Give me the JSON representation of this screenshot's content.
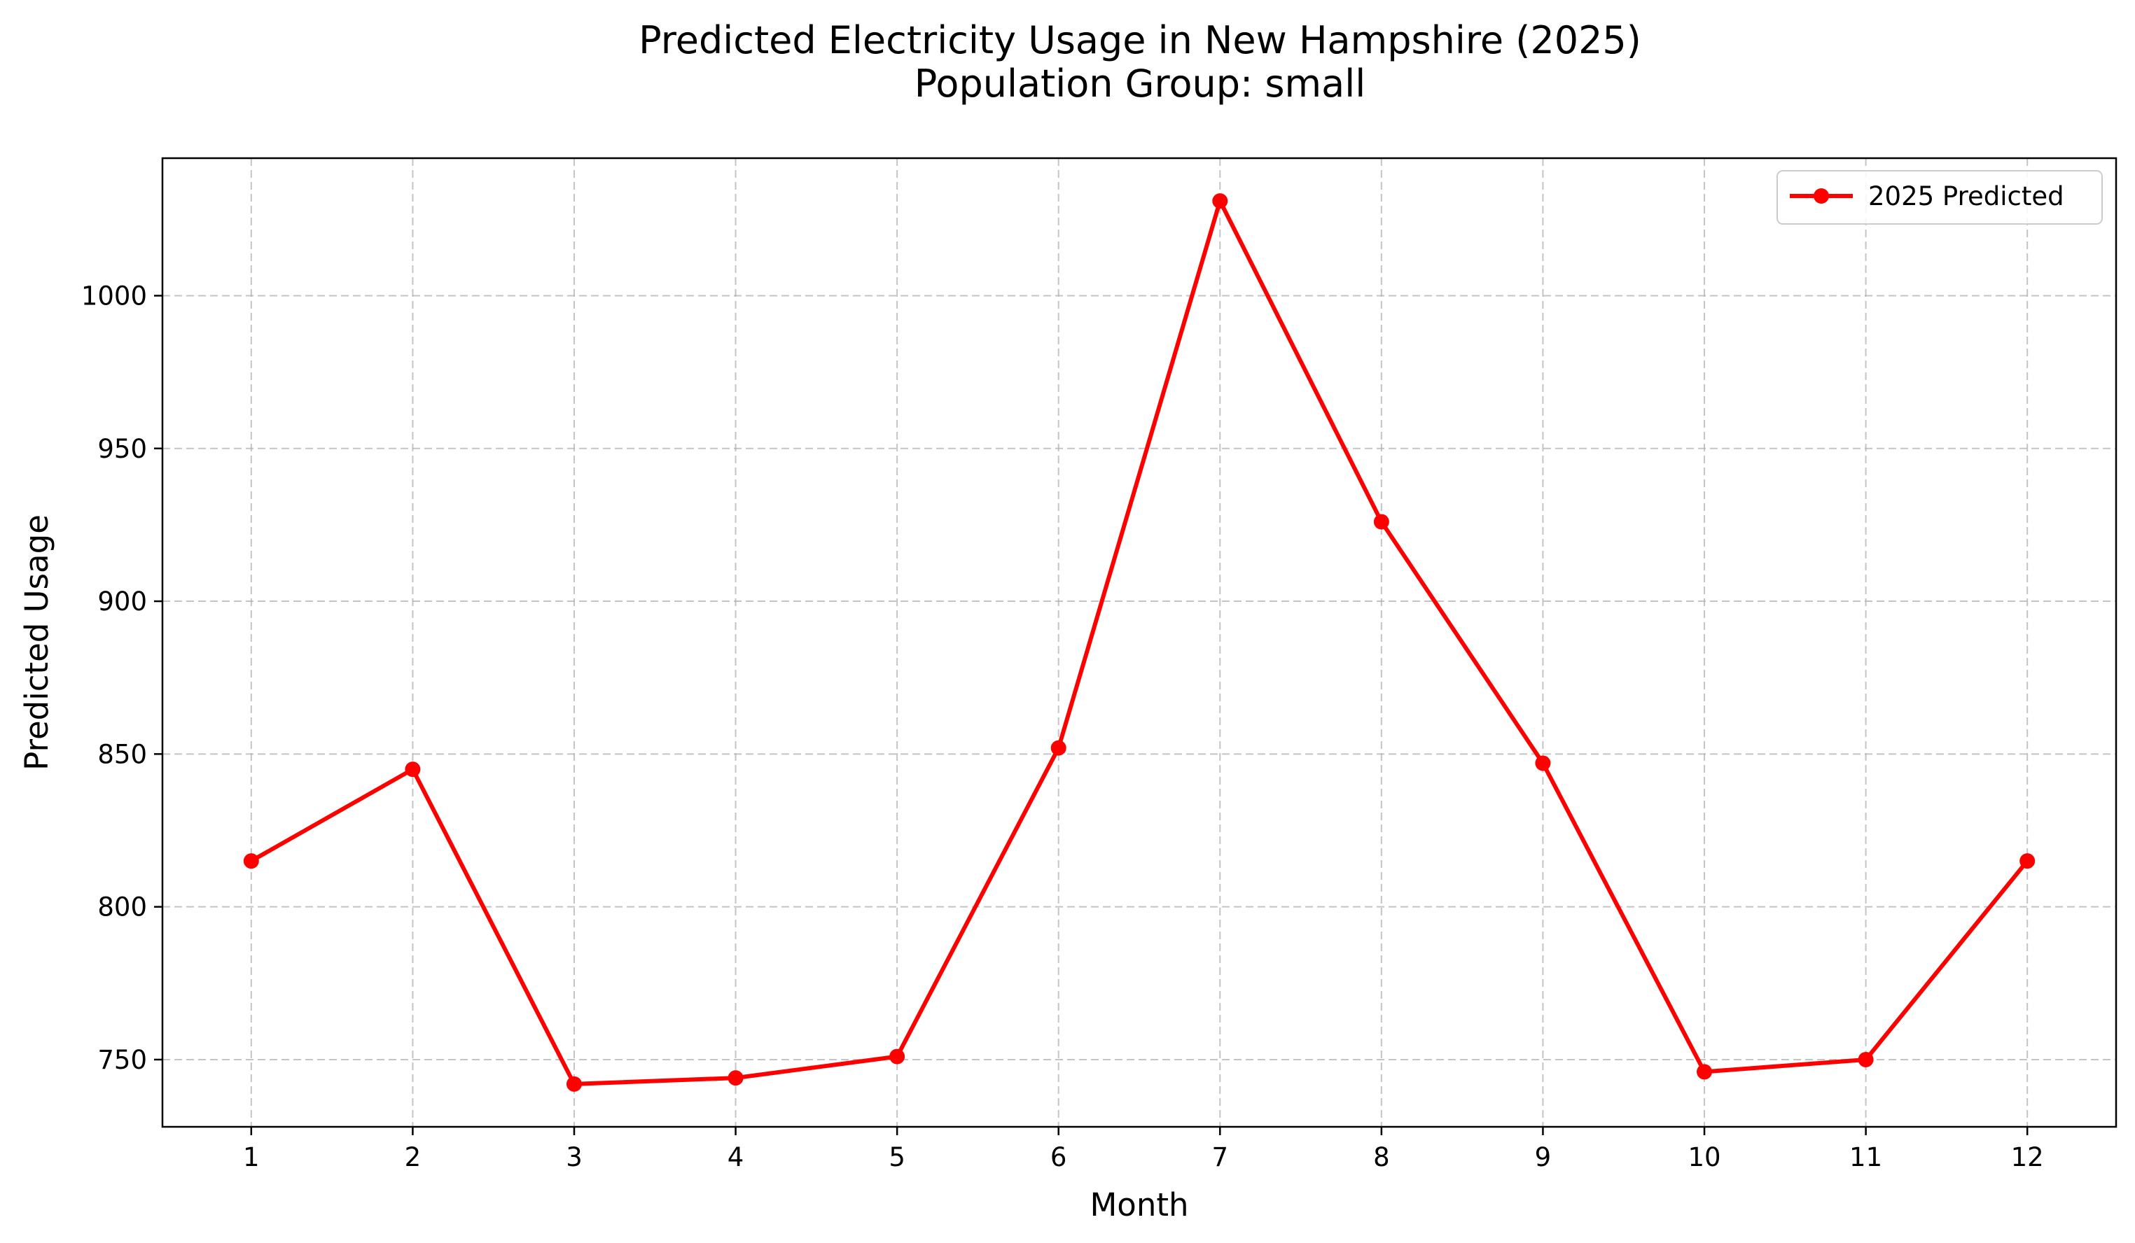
{
  "chart_data": {
    "type": "line",
    "title": "Predicted Electricity Usage in New Hampshire (2025)",
    "subtitle": "Population Group: small",
    "xlabel": "Month",
    "ylabel": "Predicted Usage",
    "x": [
      1,
      2,
      3,
      4,
      5,
      6,
      7,
      8,
      9,
      10,
      11,
      12
    ],
    "x_ticks": [
      "1",
      "2",
      "3",
      "4",
      "5",
      "6",
      "7",
      "8",
      "9",
      "10",
      "11",
      "12"
    ],
    "xlim": [
      0.45,
      12.55
    ],
    "ylim": [
      728,
      1045
    ],
    "y_ticks": [
      750,
      800,
      850,
      900,
      950,
      1000
    ],
    "grid": true,
    "legend_position": "top-right",
    "series": [
      {
        "name": "2025 Predicted",
        "color": "#ff0000",
        "marker": "circle",
        "values": [
          815,
          845,
          742,
          744,
          751,
          852,
          1031,
          926,
          847,
          746,
          750,
          815
        ]
      }
    ]
  }
}
